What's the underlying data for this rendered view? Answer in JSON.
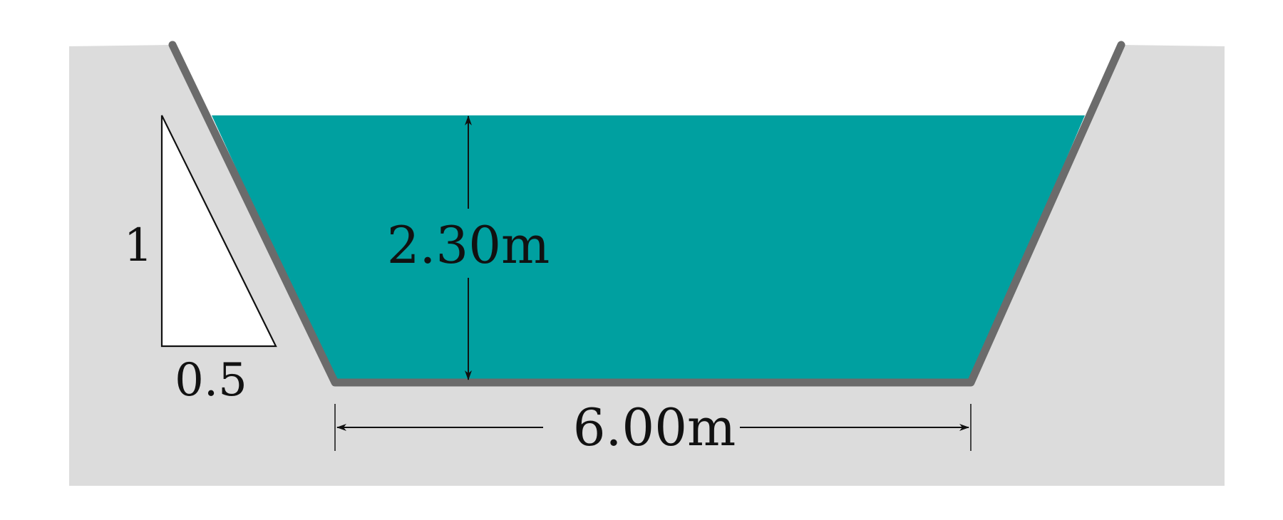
{
  "diagram": {
    "depth_label": "2.30m",
    "width_label": "6.00m",
    "slope": {
      "vertical_label": "1",
      "horizontal_label": "0.5"
    }
  },
  "colors": {
    "ground": "#dcdcdc",
    "water": "#00a0a0",
    "channel_lining": "#6b6b6b",
    "lines": "#111111",
    "background": "#ffffff"
  }
}
